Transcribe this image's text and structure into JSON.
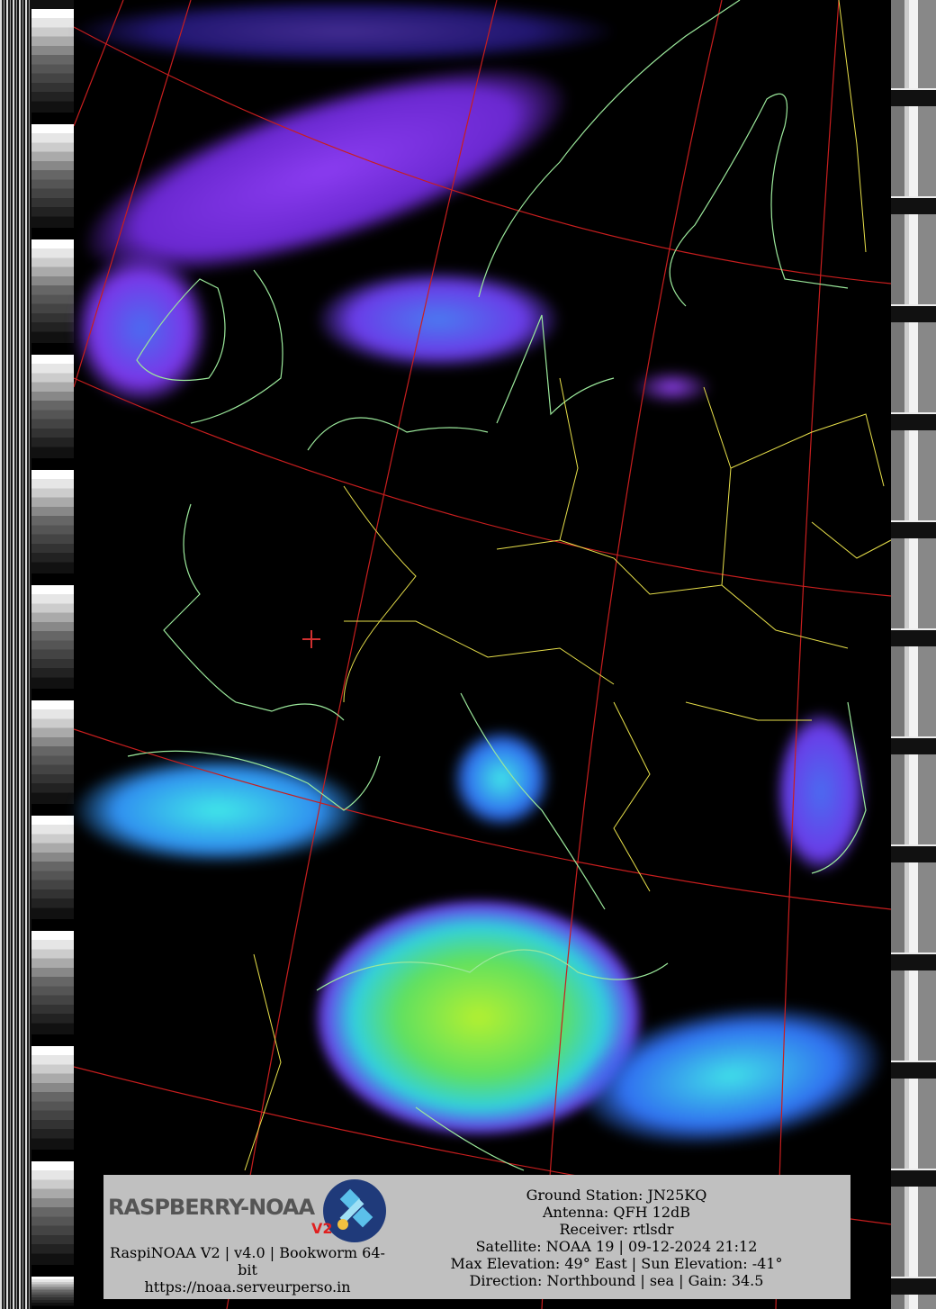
{
  "image": {
    "type": "NOAA APT satellite image",
    "overlay_colors": {
      "coastline": "#9be89b",
      "borders": "#e8e04a",
      "graticule": "#c81e1e",
      "ground_station_marker": "#d03030"
    }
  },
  "logo": {
    "text": "RASPBERRY-NOAA",
    "version_badge": "V2"
  },
  "footer_left": {
    "line1": "RaspiNOAA V2 | v4.0 | Bookworm 64-bit",
    "url": "https://noaa.serveurperso.in"
  },
  "footer_right": {
    "ground_station": "Ground Station: JN25KQ",
    "antenna": "Antenna: QFH 12dB",
    "receiver": "Receiver: rtlsdr",
    "satellite": "Satellite: NOAA 19 | 09-12-2024 21:12",
    "elevation": "Max Elevation: 49° East | Sun Elevation: -41°",
    "direction": "Direction: Northbound | sea | Gain: 34.5"
  }
}
